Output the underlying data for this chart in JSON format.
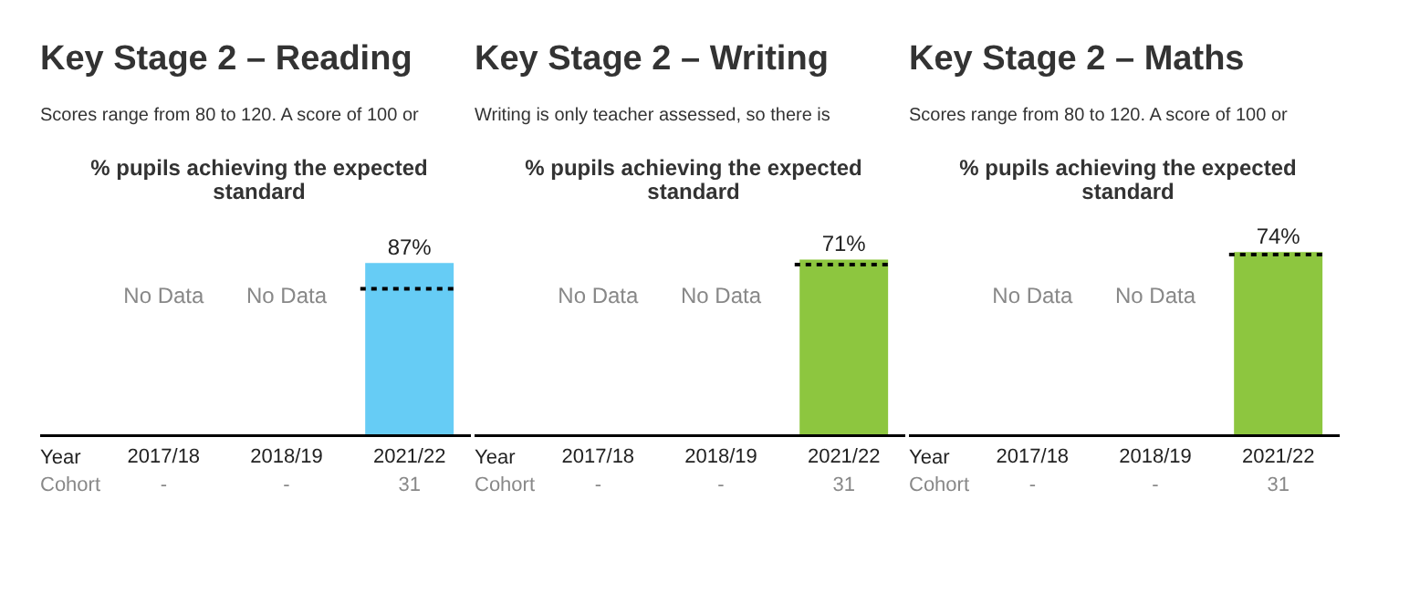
{
  "chart_data": [
    {
      "type": "bar",
      "title": "Key Stage 2 – Reading",
      "subtitle": "Scores range from 80 to 120. A score of 100 or",
      "ylabel": "% pupils achieving the expected standard",
      "xlabel": "Year",
      "categories": [
        "2017/18",
        "2018/19",
        "2021/22"
      ],
      "values": [
        null,
        null,
        87
      ],
      "value_labels": [
        "No Data",
        "No Data",
        "87%"
      ],
      "color": "#66ccf5",
      "tick_labels": "x",
      "grid": false,
      "legend": false,
      "ref_lines": [
        {
          "axis": "y",
          "value": 74,
          "color": "#000000",
          "line_style": "dotted"
        }
      ],
      "annotations": [
        "Cohort",
        "-",
        "-",
        "31"
      ]
    },
    {
      "type": "bar",
      "title": "Key Stage 2 – Writing",
      "subtitle": "Writing is only teacher assessed, so there is",
      "ylabel": "% pupils achieving the expected standard",
      "xlabel": "Year",
      "categories": [
        "2017/18",
        "2018/19",
        "2021/22"
      ],
      "values": [
        null,
        null,
        71
      ],
      "value_labels": [
        "No Data",
        "No Data",
        "71%"
      ],
      "color": "#8dc63f",
      "tick_labels": "x",
      "grid": false,
      "legend": false,
      "ref_lines": [
        {
          "axis": "y",
          "value": 69,
          "color": "#000000",
          "line_style": "dotted"
        }
      ],
      "annotations": [
        "Cohort",
        "-",
        "-",
        "31"
      ]
    },
    {
      "type": "bar",
      "title": "Key Stage 2 – Maths",
      "subtitle": "Scores range from 80 to 120. A score of 100 or",
      "ylabel": "% pupils achieving the expected standard",
      "xlabel": "Year",
      "categories": [
        "2017/18",
        "2018/19",
        "2021/22"
      ],
      "values": [
        null,
        null,
        74
      ],
      "value_labels": [
        "No Data",
        "No Data",
        "74%"
      ],
      "color": "#8dc63f",
      "tick_labels": "x",
      "grid": false,
      "legend": false,
      "ref_lines": [
        {
          "axis": "y",
          "value": 73,
          "color": "#000000",
          "line_style": "dotted"
        }
      ],
      "annotations": [
        "Cohort",
        "-",
        "-",
        "31"
      ]
    }
  ]
}
